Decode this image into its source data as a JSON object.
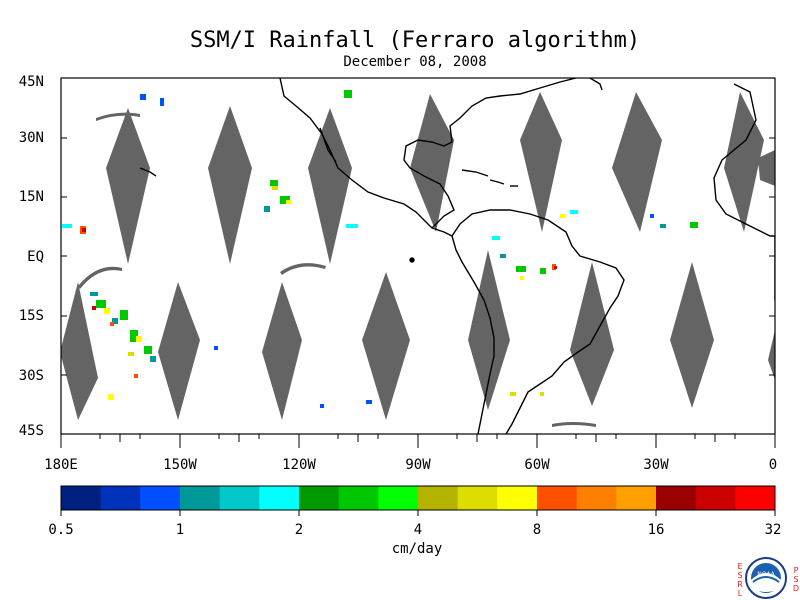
{
  "title": "SSM/I Rainfall (Ferraro algorithm)",
  "date": "December 08, 2008",
  "lat_labels": [
    "45N",
    "30N",
    "15N",
    "EQ",
    "15S",
    "30S",
    "45S"
  ],
  "lon_labels": [
    "180E",
    "150W",
    "120W",
    "90W",
    "60W",
    "30W",
    "0"
  ],
  "colorbar": {
    "units": "cm/day",
    "tick_labels": [
      "0.5",
      "1",
      "2",
      "4",
      "8",
      "16",
      "32"
    ],
    "colors": [
      "#002080",
      "#0033bb",
      "#0050ff",
      "#009999",
      "#00c8c8",
      "#00ffff",
      "#009900",
      "#00c800",
      "#00ff00",
      "#b4b400",
      "#dddd00",
      "#ffff00",
      "#ff5000",
      "#ff8000",
      "#ffa000",
      "#9a0000",
      "#cc0000",
      "#ff0000"
    ]
  },
  "map_colors": {
    "no_data_swath_gap": "#646464",
    "background": "#ffffff",
    "coastline": "#000000"
  },
  "logo": {
    "left_text": "ESRL",
    "right_text": "PSD",
    "center_text": "NOAA"
  }
}
